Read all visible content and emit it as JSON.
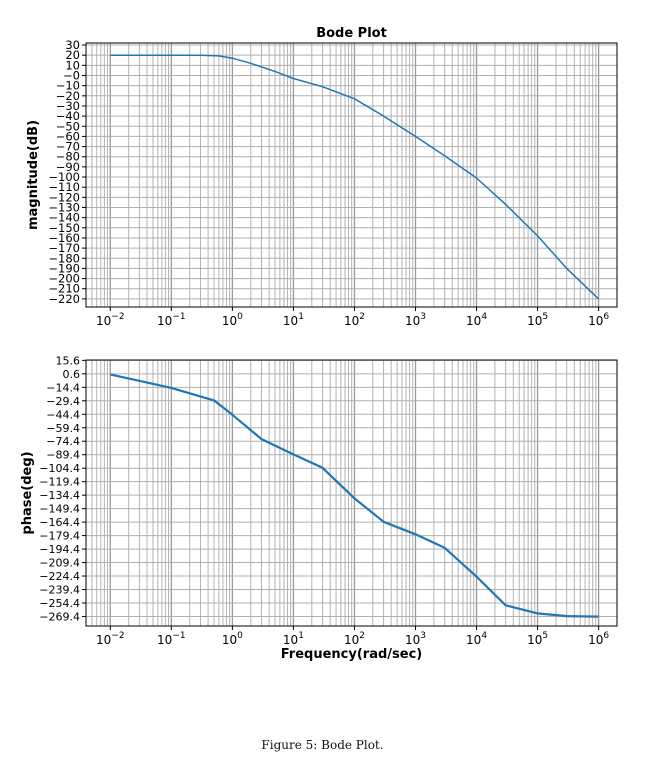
{
  "caption": {
    "label": "Figure 5:",
    "text": "Bode Plot."
  },
  "chart_data": [
    {
      "type": "line",
      "title": "Bode Plot",
      "xlabel": "",
      "ylabel": "magnitude(dB)",
      "xscale": "log",
      "xlim": [
        0.004,
        2000000
      ],
      "ylim": [
        -228,
        32
      ],
      "grid": true,
      "color": "#1f77b4",
      "x_ticks": [
        0.01,
        0.1,
        1,
        10,
        100,
        1000,
        10000,
        100000,
        1000000
      ],
      "x_tick_labels": [
        "10",
        "10",
        "10",
        "10",
        "10",
        "10",
        "10",
        "10",
        "10"
      ],
      "x_tick_exponents": [
        "−2",
        "−1",
        "0",
        "1",
        "2",
        "3",
        "4",
        "5",
        "6"
      ],
      "y_ticks": [
        30,
        20,
        10,
        0,
        -10,
        -20,
        -30,
        -40,
        -50,
        -60,
        -70,
        -80,
        -90,
        -100,
        -110,
        -120,
        -130,
        -140,
        -150,
        -160,
        -170,
        -180,
        -190,
        -200,
        -210,
        -220
      ],
      "y_tick_labels": [
        "30",
        "20",
        "10",
        "−0",
        "−10",
        "−20",
        "−30",
        "−40",
        "−50",
        "−60",
        "−70",
        "−80",
        "−90",
        "−100",
        "−110",
        "−120",
        "−130",
        "−140",
        "−150",
        "−160",
        "−170",
        "−180",
        "−190",
        "−200",
        "−210",
        "−220"
      ],
      "series": [
        {
          "name": "magnitude",
          "x": [
            0.01,
            0.1,
            0.3,
            0.6,
            1,
            2,
            5,
            10,
            30,
            100,
            300,
            1000,
            3000,
            10000,
            30000,
            100000,
            300000,
            1000000
          ],
          "y": [
            20,
            20,
            19.9,
            19.3,
            17,
            12,
            4,
            -3,
            -11,
            -23,
            -40,
            -60,
            -79,
            -101,
            -127,
            -158,
            -190,
            -220
          ]
        }
      ]
    },
    {
      "type": "line",
      "title": "",
      "xlabel": "Frequency(rad/sec)",
      "ylabel": "phase(deg)",
      "xscale": "log",
      "xlim": [
        0.004,
        2000000
      ],
      "ylim": [
        -280,
        16
      ],
      "grid": true,
      "color": "#1f77b4",
      "x_ticks": [
        0.01,
        0.1,
        1,
        10,
        100,
        1000,
        10000,
        100000,
        1000000
      ],
      "x_tick_labels": [
        "10",
        "10",
        "10",
        "10",
        "10",
        "10",
        "10",
        "10",
        "10"
      ],
      "x_tick_exponents": [
        "−2",
        "−1",
        "0",
        "1",
        "2",
        "3",
        "4",
        "5",
        "6"
      ],
      "y_ticks": [
        15.6,
        0.6,
        -14.4,
        -29.4,
        -44.4,
        -59.4,
        -74.4,
        -89.4,
        -104.4,
        -119.4,
        -134.4,
        -149.4,
        -164.4,
        -179.4,
        -194.4,
        -209.4,
        -224.4,
        -239.4,
        -254.4,
        -269.4
      ],
      "y_tick_labels": [
        "15.6",
        "0.6",
        "−14.4",
        "−29.4",
        "−44.4",
        "−59.4",
        "−74.4",
        "−89.4",
        "−104.4",
        "−119.4",
        "−134.4",
        "−149.4",
        "−164.4",
        "−179.4",
        "−194.4",
        "−209.4",
        "−224.4",
        "−239.4",
        "−254.4",
        "−269.4"
      ],
      "series": [
        {
          "name": "phase",
          "x": [
            0.01,
            0.1,
            0.5,
            1,
            3,
            10,
            30,
            100,
            300,
            1000,
            3000,
            10000,
            30000,
            100000,
            300000,
            1000000
          ],
          "y": [
            0,
            -15,
            -29,
            -45,
            -72,
            -89,
            -104,
            -138,
            -164,
            -178,
            -193,
            -225,
            -257,
            -266,
            -269,
            -269.5
          ]
        }
      ]
    }
  ]
}
